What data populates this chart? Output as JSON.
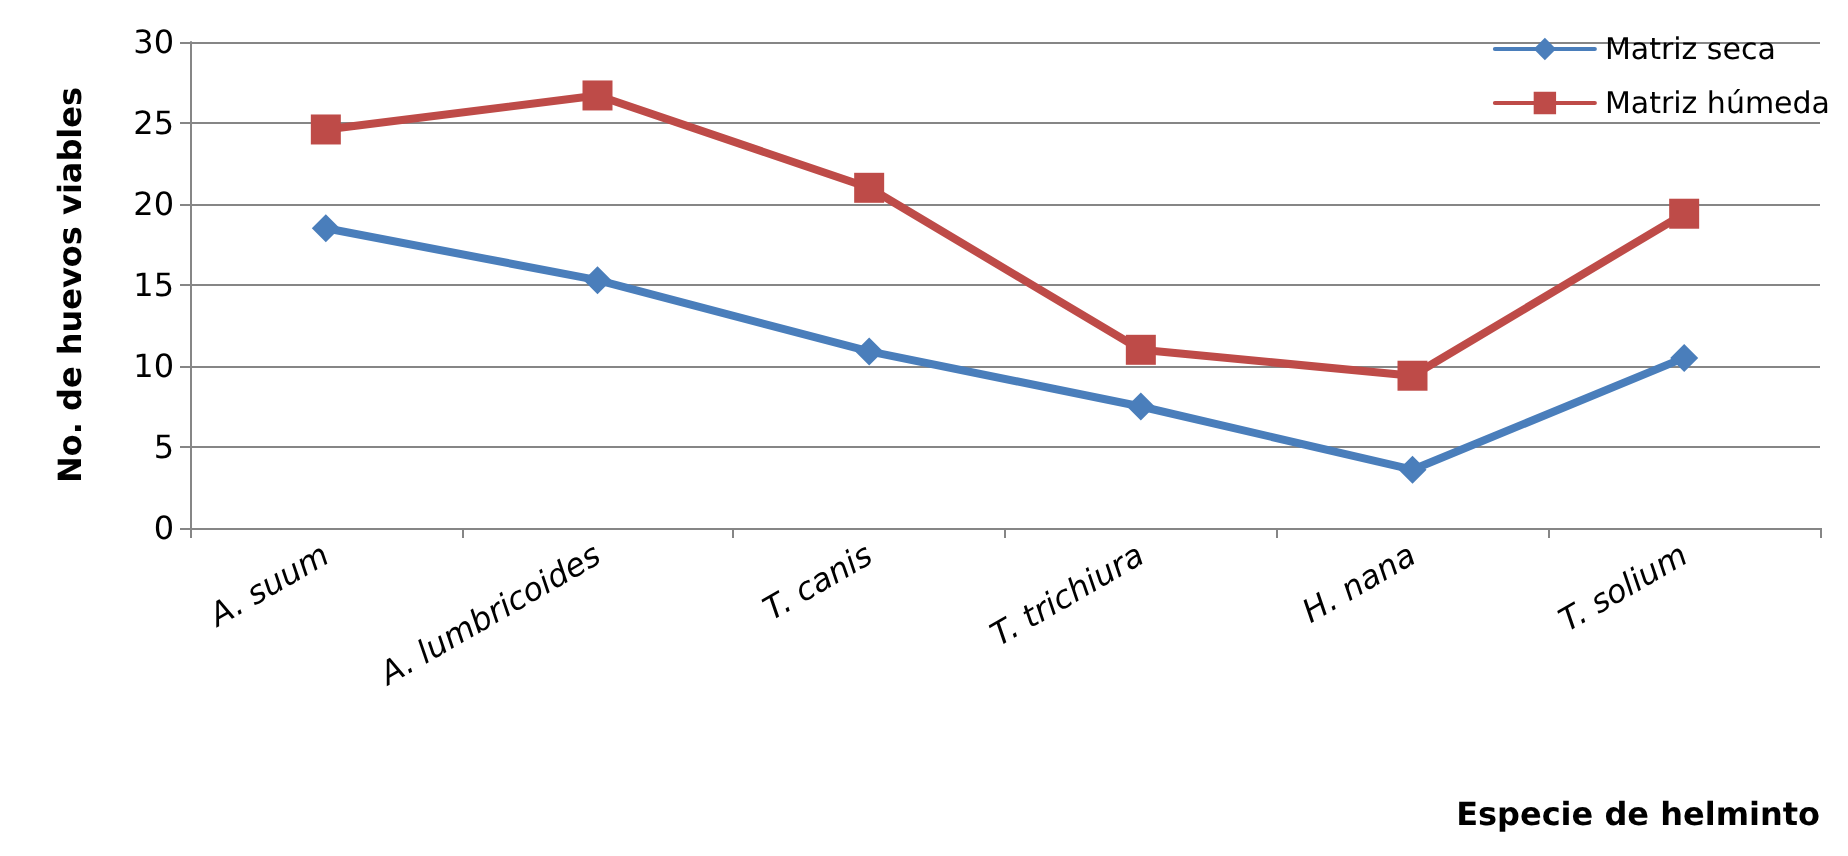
{
  "chart_data": {
    "type": "line",
    "xlabel": "Especie de helminto",
    "ylabel": "No. de huevos viables",
    "categories": [
      "A. suum",
      "A. lumbricoides",
      "T. canis",
      "T. trichiura",
      "H. nana",
      "T. solium"
    ],
    "series": [
      {
        "name": "Matriz seca",
        "color": "#4a7ebb",
        "marker": "diamond",
        "values": [
          18.5,
          15.3,
          10.9,
          7.5,
          3.6,
          10.5
        ]
      },
      {
        "name": "Matriz húmeda",
        "color": "#be4b48",
        "marker": "square",
        "values": [
          24.6,
          26.7,
          21.0,
          11.0,
          9.4,
          19.4
        ]
      }
    ],
    "ylim": [
      0,
      30
    ],
    "yticks": [
      0,
      5,
      10,
      15,
      20,
      25,
      30
    ],
    "grid": "y",
    "legend": "top right",
    "line_style": "solid"
  }
}
